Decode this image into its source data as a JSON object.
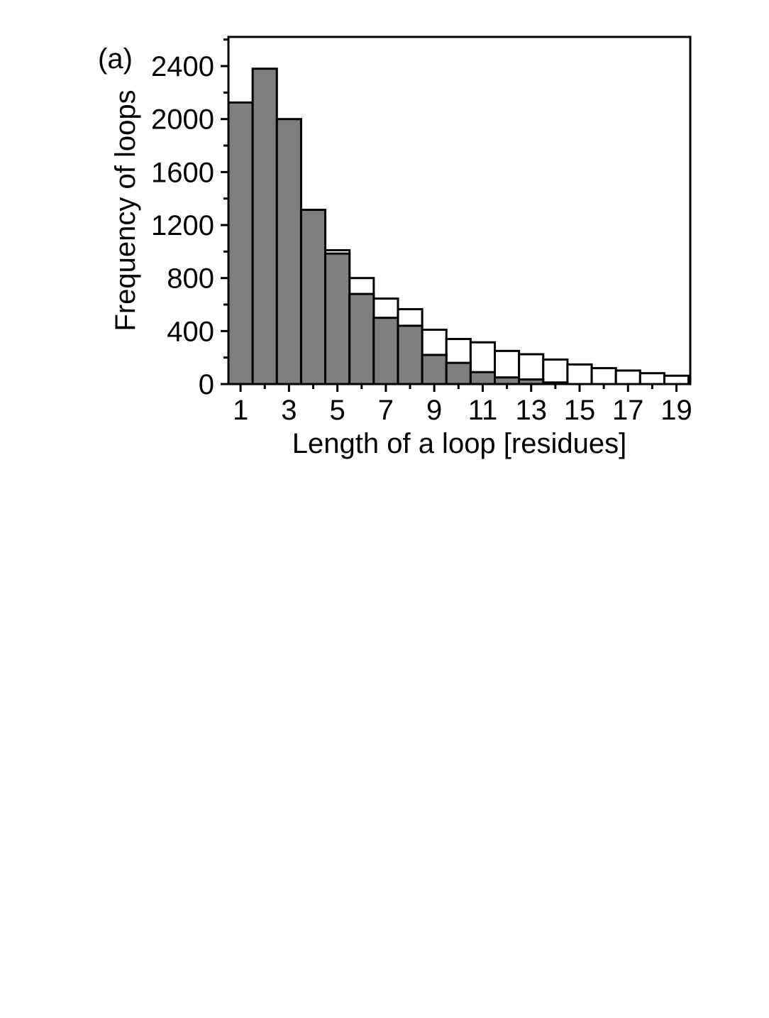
{
  "figure": {
    "panel_label": "(a)",
    "background": "#ffffff"
  },
  "chart_data": {
    "type": "bar",
    "subtype": "overlaid-histogram",
    "title": "",
    "xlabel": "Length of a loop [residues]",
    "ylabel": "Frequency of loops",
    "categories": [
      1,
      2,
      3,
      4,
      5,
      6,
      7,
      8,
      9,
      10,
      11,
      12,
      13,
      14,
      15,
      16,
      17,
      18,
      19
    ],
    "series": [
      {
        "name": "open-white-bars",
        "style": "open",
        "fill": "#ffffff",
        "values": [
          null,
          null,
          null,
          null,
          1010,
          800,
          645,
          565,
          410,
          340,
          315,
          250,
          225,
          185,
          148,
          120,
          102,
          82,
          63
        ]
      },
      {
        "name": "filled-gray-bars",
        "style": "filled",
        "fill": "#7f7f7f",
        "values": [
          2125,
          2380,
          2000,
          1315,
          985,
          680,
          500,
          440,
          220,
          160,
          90,
          50,
          35,
          12,
          null,
          null,
          null,
          null,
          null
        ]
      }
    ],
    "bar_width": 1,
    "xlim": [
      0.5,
      19.57
    ],
    "ylim": [
      0,
      2620
    ],
    "x_major_ticks": [
      1,
      3,
      5,
      7,
      9,
      11,
      13,
      15,
      17,
      19
    ],
    "x_minor_ticks": [
      2,
      4,
      6,
      8,
      10,
      12,
      14,
      16,
      18
    ],
    "y_major_ticks": [
      0,
      400,
      800,
      1200,
      1600,
      2000,
      2400
    ],
    "y_minor_ticks": [
      200,
      600,
      1000,
      1400,
      1800,
      2200,
      2600
    ],
    "grid": false,
    "legend": "none",
    "axis_color": "#000000",
    "bar_outline_color": "#000000"
  }
}
